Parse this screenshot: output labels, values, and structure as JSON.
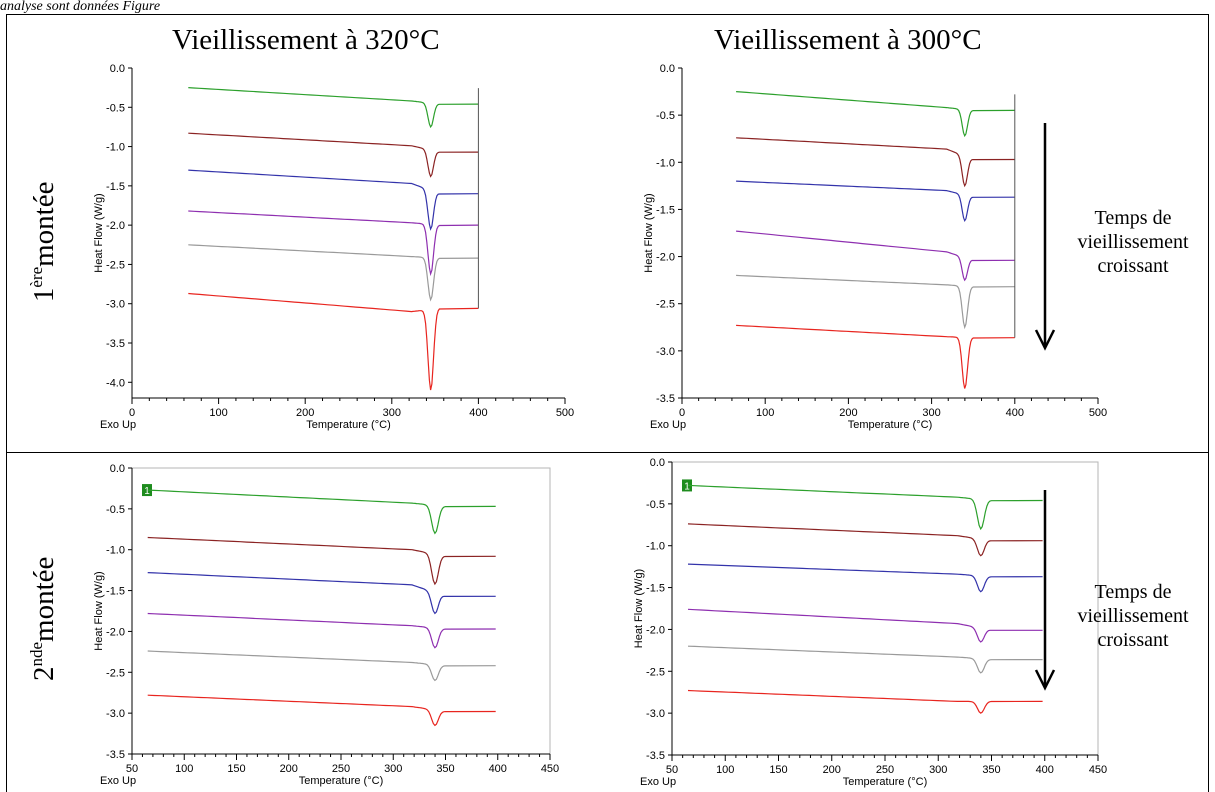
{
  "caption_fragment": "analyse sont données Figure",
  "column_titles": [
    "Vieillissement à 320°C",
    "Vieillissement à 300°C"
  ],
  "row_labels": [
    {
      "base": "1",
      "sup": "ère",
      "word": "montée"
    },
    {
      "base": "2",
      "sup": "nde",
      "word": "montée"
    }
  ],
  "arrow_note": [
    "Temps de",
    "vieillissement",
    "croissant"
  ],
  "series_colors": [
    "#2ca02c",
    "#8b2323",
    "#3333aa",
    "#8e2fb0",
    "#9a9a9a",
    "#e8251f"
  ],
  "chart_data": [
    {
      "type": "line",
      "xlabel": "Temperature (°C)",
      "ylabel": "Heat Flow (W/g)",
      "corner_label": "Exo Up",
      "xlim": [
        0,
        500
      ],
      "ylim": [
        -4.2,
        0
      ],
      "xticks": [
        0,
        100,
        200,
        300,
        400,
        500
      ],
      "yticks": [
        0.0,
        -0.5,
        -1.0,
        -1.5,
        -2.0,
        -2.5,
        -3.0,
        -3.5,
        -4.0
      ],
      "x_start": 65,
      "x_end": 400,
      "peak_x": 345,
      "series": [
        {
          "start": -0.25,
          "pre": -0.42,
          "peak": -0.75,
          "end": -0.46
        },
        {
          "start": -0.83,
          "pre": -0.99,
          "peak": -1.38,
          "end": -1.07
        },
        {
          "start": -1.3,
          "pre": -1.47,
          "peak": -2.05,
          "end": -1.6
        },
        {
          "start": -1.82,
          "pre": -1.97,
          "peak": -2.62,
          "end": -2.0
        },
        {
          "start": -2.25,
          "pre": -2.4,
          "peak": -2.95,
          "end": -2.42
        },
        {
          "start": -2.87,
          "pre": -3.1,
          "peak": -4.1,
          "end": -3.06
        }
      ]
    },
    {
      "type": "line",
      "xlabel": "Temperature (°C)",
      "ylabel": "Heat Flow (W/g)",
      "corner_label": "Exo Up",
      "xlim": [
        0,
        500
      ],
      "ylim": [
        -3.5,
        0
      ],
      "xticks": [
        0,
        100,
        200,
        300,
        400,
        500
      ],
      "yticks": [
        0.0,
        -0.5,
        -1.0,
        -1.5,
        -2.0,
        -2.5,
        -3.0,
        -3.5
      ],
      "x_start": 65,
      "x_end": 400,
      "peak_x": 340,
      "series": [
        {
          "start": -0.25,
          "pre": -0.42,
          "peak": -0.72,
          "end": -0.45
        },
        {
          "start": -0.74,
          "pre": -0.86,
          "peak": -1.25,
          "end": -0.97
        },
        {
          "start": -1.2,
          "pre": -1.3,
          "peak": -1.62,
          "end": -1.37
        },
        {
          "start": -1.73,
          "pre": -1.95,
          "peak": -2.25,
          "end": -2.04
        },
        {
          "start": -2.2,
          "pre": -2.3,
          "peak": -2.75,
          "end": -2.32
        },
        {
          "start": -2.73,
          "pre": -2.85,
          "peak": -3.4,
          "end": -2.86
        }
      ]
    },
    {
      "type": "line",
      "xlabel": "Temperature (°C)",
      "ylabel": "Heat Flow (W/g)",
      "corner_label": "Exo Up",
      "marker": "1",
      "xlim": [
        50,
        450
      ],
      "ylim": [
        -3.5,
        0
      ],
      "xticks": [
        50,
        100,
        150,
        200,
        250,
        300,
        350,
        400,
        450
      ],
      "yticks": [
        0.0,
        -0.5,
        -1.0,
        -1.5,
        -2.0,
        -2.5,
        -3.0,
        -3.5
      ],
      "x_start": 65,
      "x_end": 398,
      "peak_x": 340,
      "series": [
        {
          "start": -0.27,
          "pre": -0.43,
          "peak": -0.8,
          "end": -0.47
        },
        {
          "start": -0.85,
          "pre": -1.0,
          "peak": -1.42,
          "end": -1.08
        },
        {
          "start": -1.28,
          "pre": -1.43,
          "peak": -1.78,
          "end": -1.57
        },
        {
          "start": -1.78,
          "pre": -1.93,
          "peak": -2.2,
          "end": -1.97
        },
        {
          "start": -2.24,
          "pre": -2.38,
          "peak": -2.6,
          "end": -2.42
        },
        {
          "start": -2.78,
          "pre": -2.92,
          "peak": -3.15,
          "end": -2.98
        }
      ]
    },
    {
      "type": "line",
      "xlabel": "Temperature (°C)",
      "ylabel": "Heat Flow (W/g)",
      "corner_label": "Exo Up",
      "marker": "1",
      "xlim": [
        50,
        450
      ],
      "ylim": [
        -3.5,
        0
      ],
      "xticks": [
        50,
        100,
        150,
        200,
        250,
        300,
        350,
        400,
        450
      ],
      "yticks": [
        0.0,
        -0.5,
        -1.0,
        -1.5,
        -2.0,
        -2.5,
        -3.0,
        -3.5
      ],
      "x_start": 65,
      "x_end": 398,
      "peak_x": 340,
      "series": [
        {
          "start": -0.28,
          "pre": -0.42,
          "peak": -0.8,
          "end": -0.46
        },
        {
          "start": -0.74,
          "pre": -0.88,
          "peak": -1.12,
          "end": -0.94
        },
        {
          "start": -1.22,
          "pre": -1.34,
          "peak": -1.55,
          "end": -1.37
        },
        {
          "start": -1.76,
          "pre": -1.93,
          "peak": -2.15,
          "end": -2.01
        },
        {
          "start": -2.2,
          "pre": -2.33,
          "peak": -2.52,
          "end": -2.36
        },
        {
          "start": -2.73,
          "pre": -2.86,
          "peak": -3.0,
          "end": -2.86
        }
      ]
    }
  ]
}
